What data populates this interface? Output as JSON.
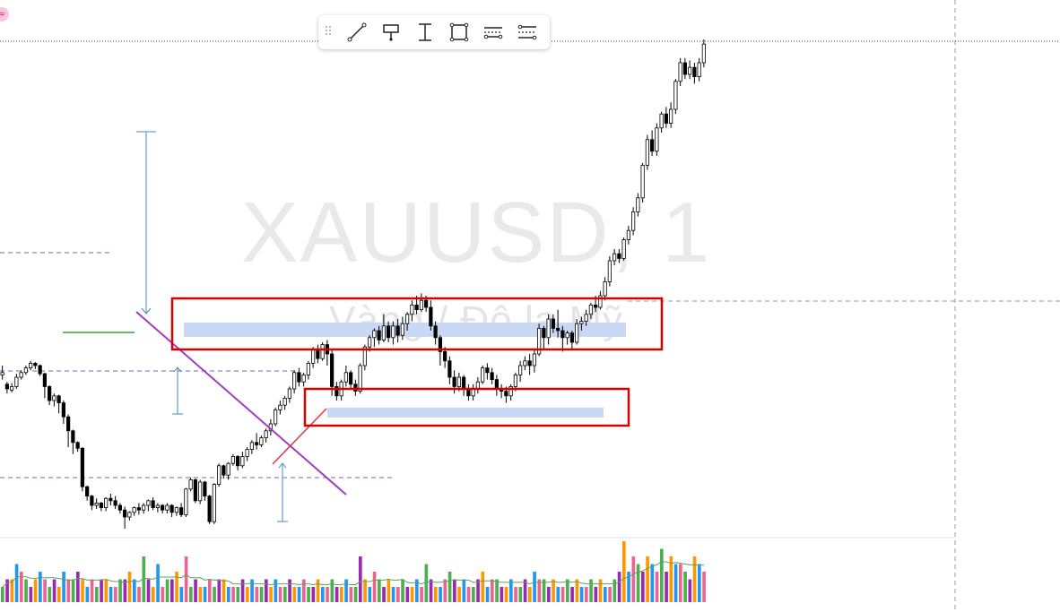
{
  "watermark": {
    "symbol": "XAUUSD, 1",
    "description": "Vàng / Đô la Mỹ"
  },
  "toolbar": {
    "items": [
      {
        "name": "trend-line-tool"
      },
      {
        "name": "anchored-text-tool"
      },
      {
        "name": "price-range-tool"
      },
      {
        "name": "rectangle-tool"
      },
      {
        "name": "parallel-channel-tool"
      },
      {
        "name": "settings-tool"
      }
    ]
  },
  "colors": {
    "up_candle": "#ffffff",
    "down_candle": "#000000",
    "wick": "#000000",
    "zone_border": "#d90000",
    "zone_fill": "#c9d8f5",
    "trend_line": "#a23bc6",
    "measure": "#4a86c5",
    "dashed": "#6b6bb3",
    "volume": [
      "#4caf50",
      "#9c27b0",
      "#ff9800",
      "#2196f3",
      "#f06292"
    ]
  },
  "chart_data": {
    "type": "candlestick",
    "title": "",
    "candles": [
      [
        0,
        488,
        490,
        496,
        484
      ],
      [
        1,
        480,
        476,
        482,
        472
      ],
      [
        2,
        475,
        478,
        481,
        473
      ],
      [
        3,
        478,
        486,
        489,
        476
      ],
      [
        4,
        486,
        490,
        492,
        484
      ],
      [
        5,
        490,
        494,
        496,
        488
      ],
      [
        6,
        494,
        498,
        500,
        492
      ],
      [
        7,
        498,
        496,
        499,
        493
      ],
      [
        8,
        496,
        489,
        497,
        487
      ],
      [
        9,
        489,
        478,
        490,
        468
      ],
      [
        10,
        478,
        466,
        479,
        462
      ],
      [
        11,
        466,
        470,
        472,
        461
      ],
      [
        12,
        470,
        464,
        471,
        455
      ],
      [
        13,
        464,
        452,
        466,
        446
      ],
      [
        14,
        452,
        440,
        454,
        426
      ],
      [
        15,
        440,
        430,
        441,
        420
      ],
      [
        16,
        430,
        425,
        431,
        422
      ],
      [
        17,
        425,
        392,
        426,
        388
      ],
      [
        18,
        392,
        384,
        393,
        380
      ],
      [
        19,
        384,
        376,
        385,
        372
      ],
      [
        20,
        376,
        378,
        382,
        373
      ],
      [
        21,
        378,
        374,
        379,
        371
      ],
      [
        22,
        374,
        382,
        383,
        371
      ],
      [
        23,
        382,
        380,
        386,
        376
      ],
      [
        24,
        380,
        376,
        384,
        373
      ],
      [
        25,
        376,
        372,
        378,
        369
      ],
      [
        26,
        372,
        366,
        375,
        356
      ],
      [
        27,
        366,
        370,
        371,
        363
      ],
      [
        28,
        370,
        374,
        375,
        367
      ],
      [
        29,
        374,
        372,
        378,
        368
      ],
      [
        30,
        372,
        376,
        378,
        369
      ],
      [
        31,
        376,
        380,
        381,
        371
      ],
      [
        32,
        380,
        374,
        383,
        372
      ],
      [
        33,
        374,
        376,
        378,
        370
      ],
      [
        34,
        376,
        372,
        377,
        369
      ],
      [
        35,
        372,
        376,
        378,
        369
      ],
      [
        36,
        376,
        370,
        377,
        366
      ],
      [
        37,
        370,
        374,
        375,
        367
      ],
      [
        38,
        374,
        368,
        378,
        366
      ],
      [
        39,
        368,
        390,
        391,
        366
      ],
      [
        40,
        390,
        398,
        400,
        388
      ],
      [
        41,
        398,
        380,
        399,
        378
      ],
      [
        42,
        380,
        396,
        398,
        377
      ],
      [
        43,
        396,
        384,
        397,
        380
      ],
      [
        44,
        384,
        362,
        385,
        360
      ],
      [
        45,
        362,
        394,
        395,
        360
      ],
      [
        46,
        394,
        410,
        412,
        392
      ],
      [
        47,
        410,
        402,
        411,
        399
      ],
      [
        48,
        402,
        412,
        413,
        398
      ],
      [
        49,
        412,
        418,
        420,
        410
      ],
      [
        50,
        418,
        410,
        419,
        406
      ],
      [
        51,
        410,
        418,
        422,
        408
      ],
      [
        52,
        418,
        424,
        426,
        414
      ],
      [
        53,
        424,
        430,
        432,
        420
      ],
      [
        54,
        430,
        428,
        438,
        424
      ],
      [
        55,
        428,
        434,
        436,
        426
      ],
      [
        56,
        434,
        440,
        442,
        430
      ],
      [
        57,
        440,
        446,
        450,
        436
      ],
      [
        58,
        446,
        458,
        460,
        444
      ],
      [
        59,
        458,
        462,
        466,
        454
      ],
      [
        60,
        462,
        468,
        470,
        458
      ],
      [
        61,
        468,
        476,
        478,
        464
      ],
      [
        62,
        476,
        490,
        492,
        472
      ],
      [
        63,
        490,
        482,
        494,
        478
      ],
      [
        64,
        482,
        488,
        490,
        478
      ],
      [
        65,
        488,
        498,
        500,
        484
      ],
      [
        66,
        498,
        510,
        512,
        494
      ],
      [
        67,
        510,
        502,
        514,
        498
      ],
      [
        68,
        502,
        514,
        516,
        500
      ],
      [
        69,
        514,
        506,
        518,
        496
      ],
      [
        70,
        506,
        478,
        510,
        470
      ],
      [
        71,
        478,
        470,
        482,
        466
      ],
      [
        72,
        470,
        482,
        484,
        466
      ],
      [
        73,
        482,
        490,
        496,
        478
      ],
      [
        74,
        490,
        480,
        492,
        476
      ],
      [
        75,
        480,
        474,
        484,
        470
      ],
      [
        76,
        474,
        496,
        498,
        472
      ],
      [
        77,
        496,
        512,
        514,
        492
      ],
      [
        78,
        512,
        520,
        522,
        508
      ],
      [
        79,
        520,
        526,
        528,
        512
      ],
      [
        80,
        526,
        518,
        530,
        514
      ],
      [
        81,
        518,
        530,
        540,
        516
      ],
      [
        82,
        530,
        520,
        534,
        516
      ],
      [
        83,
        520,
        530,
        534,
        514
      ],
      [
        84,
        530,
        522,
        536,
        516
      ],
      [
        85,
        522,
        532,
        538,
        518
      ],
      [
        86,
        532,
        540,
        542,
        526
      ],
      [
        87,
        540,
        548,
        552,
        534
      ],
      [
        88,
        548,
        544,
        556,
        540
      ],
      [
        89,
        544,
        552,
        558,
        542
      ],
      [
        90,
        552,
        546,
        556,
        542
      ],
      [
        91,
        546,
        530,
        552,
        526
      ],
      [
        92,
        530,
        520,
        534,
        514
      ],
      [
        93,
        520,
        508,
        522,
        496
      ],
      [
        94,
        508,
        500,
        512,
        494
      ],
      [
        95,
        500,
        486,
        504,
        480
      ],
      [
        96,
        486,
        478,
        492,
        472
      ],
      [
        97,
        478,
        486,
        490,
        474
      ],
      [
        98,
        486,
        476,
        488,
        470
      ],
      [
        99,
        476,
        470,
        480,
        466
      ],
      [
        100,
        470,
        476,
        480,
        466
      ],
      [
        101,
        476,
        482,
        486,
        472
      ],
      [
        102,
        482,
        494,
        496,
        480
      ],
      [
        103,
        494,
        490,
        498,
        484
      ],
      [
        104,
        490,
        484,
        494,
        480
      ],
      [
        105,
        484,
        476,
        488,
        470
      ],
      [
        106,
        476,
        474,
        480,
        468
      ],
      [
        107,
        474,
        470,
        478,
        464
      ],
      [
        108,
        470,
        478,
        480,
        466
      ],
      [
        109,
        478,
        488,
        490,
        474
      ],
      [
        110,
        488,
        496,
        500,
        482
      ],
      [
        111,
        496,
        500,
        504,
        492
      ],
      [
        112,
        500,
        496,
        506,
        488
      ],
      [
        113,
        496,
        506,
        510,
        490
      ],
      [
        114,
        506,
        528,
        532,
        504
      ],
      [
        115,
        528,
        520,
        530,
        510
      ],
      [
        116,
        520,
        536,
        540,
        514
      ],
      [
        117,
        536,
        528,
        540,
        524
      ],
      [
        118,
        528,
        526,
        544,
        520
      ],
      [
        119,
        526,
        520,
        530,
        508
      ],
      [
        120,
        520,
        524,
        526,
        514
      ],
      [
        121,
        524,
        516,
        526,
        510
      ],
      [
        122,
        516,
        532,
        536,
        514
      ],
      [
        123,
        532,
        534,
        538,
        526
      ],
      [
        124,
        534,
        540,
        544,
        530
      ],
      [
        125,
        540,
        548,
        550,
        536
      ],
      [
        126,
        548,
        546,
        556,
        542
      ],
      [
        127,
        546,
        556,
        560,
        544
      ],
      [
        128,
        556,
        568,
        572,
        552
      ],
      [
        129,
        568,
        586,
        590,
        564
      ],
      [
        130,
        586,
        592,
        596,
        582
      ],
      [
        131,
        592,
        588,
        596,
        584
      ],
      [
        132,
        588,
        604,
        606,
        586
      ],
      [
        133,
        604,
        612,
        616,
        600
      ],
      [
        134,
        612,
        628,
        632,
        608
      ],
      [
        135,
        628,
        640,
        644,
        624
      ],
      [
        136,
        640,
        668,
        670,
        636
      ],
      [
        137,
        668,
        690,
        694,
        664
      ],
      [
        138,
        690,
        680,
        698,
        676
      ],
      [
        139,
        680,
        700,
        704,
        676
      ],
      [
        140,
        700,
        712,
        714,
        696
      ],
      [
        141,
        712,
        704,
        718,
        700
      ],
      [
        142,
        704,
        716,
        722,
        700
      ],
      [
        143,
        716,
        740,
        742,
        712
      ],
      [
        144,
        740,
        756,
        760,
        736
      ],
      [
        145,
        756,
        746,
        760,
        742
      ],
      [
        146,
        746,
        752,
        758,
        742
      ],
      [
        147,
        752,
        744,
        756,
        738
      ],
      [
        148,
        744,
        756,
        760,
        740
      ],
      [
        149,
        756,
        772,
        776,
        752
      ]
    ],
    "volume": [
      2,
      3,
      3,
      5,
      4,
      3,
      2,
      3,
      4,
      3,
      2,
      3,
      2,
      4,
      3,
      3,
      4,
      3,
      2,
      3,
      2,
      3,
      3,
      2,
      2,
      3,
      3,
      4,
      3,
      2,
      6,
      3,
      2,
      5,
      2,
      3,
      3,
      4,
      2,
      6,
      2,
      3,
      2,
      2,
      3,
      2,
      3,
      3,
      2,
      2,
      2,
      3,
      2,
      3,
      2,
      2,
      3,
      2,
      3,
      2,
      2,
      3,
      2,
      2,
      3,
      2,
      2,
      3,
      2,
      2,
      3,
      2,
      2,
      3,
      2,
      2,
      6,
      3,
      2,
      4,
      3,
      2,
      3,
      2,
      2,
      3,
      2,
      2,
      3,
      2,
      5,
      3,
      2,
      2,
      3,
      4,
      3,
      2,
      3,
      2,
      2,
      3,
      4,
      2,
      3,
      3,
      2,
      2,
      3,
      2,
      2,
      3,
      2,
      4,
      3,
      3,
      2,
      3,
      2,
      2,
      3,
      2,
      3,
      2,
      2,
      3,
      2,
      3,
      2,
      2,
      3,
      4,
      8,
      4,
      6,
      5,
      4,
      6,
      5,
      4,
      7,
      4,
      6,
      5,
      5,
      4,
      3,
      6,
      5,
      4
    ]
  }
}
